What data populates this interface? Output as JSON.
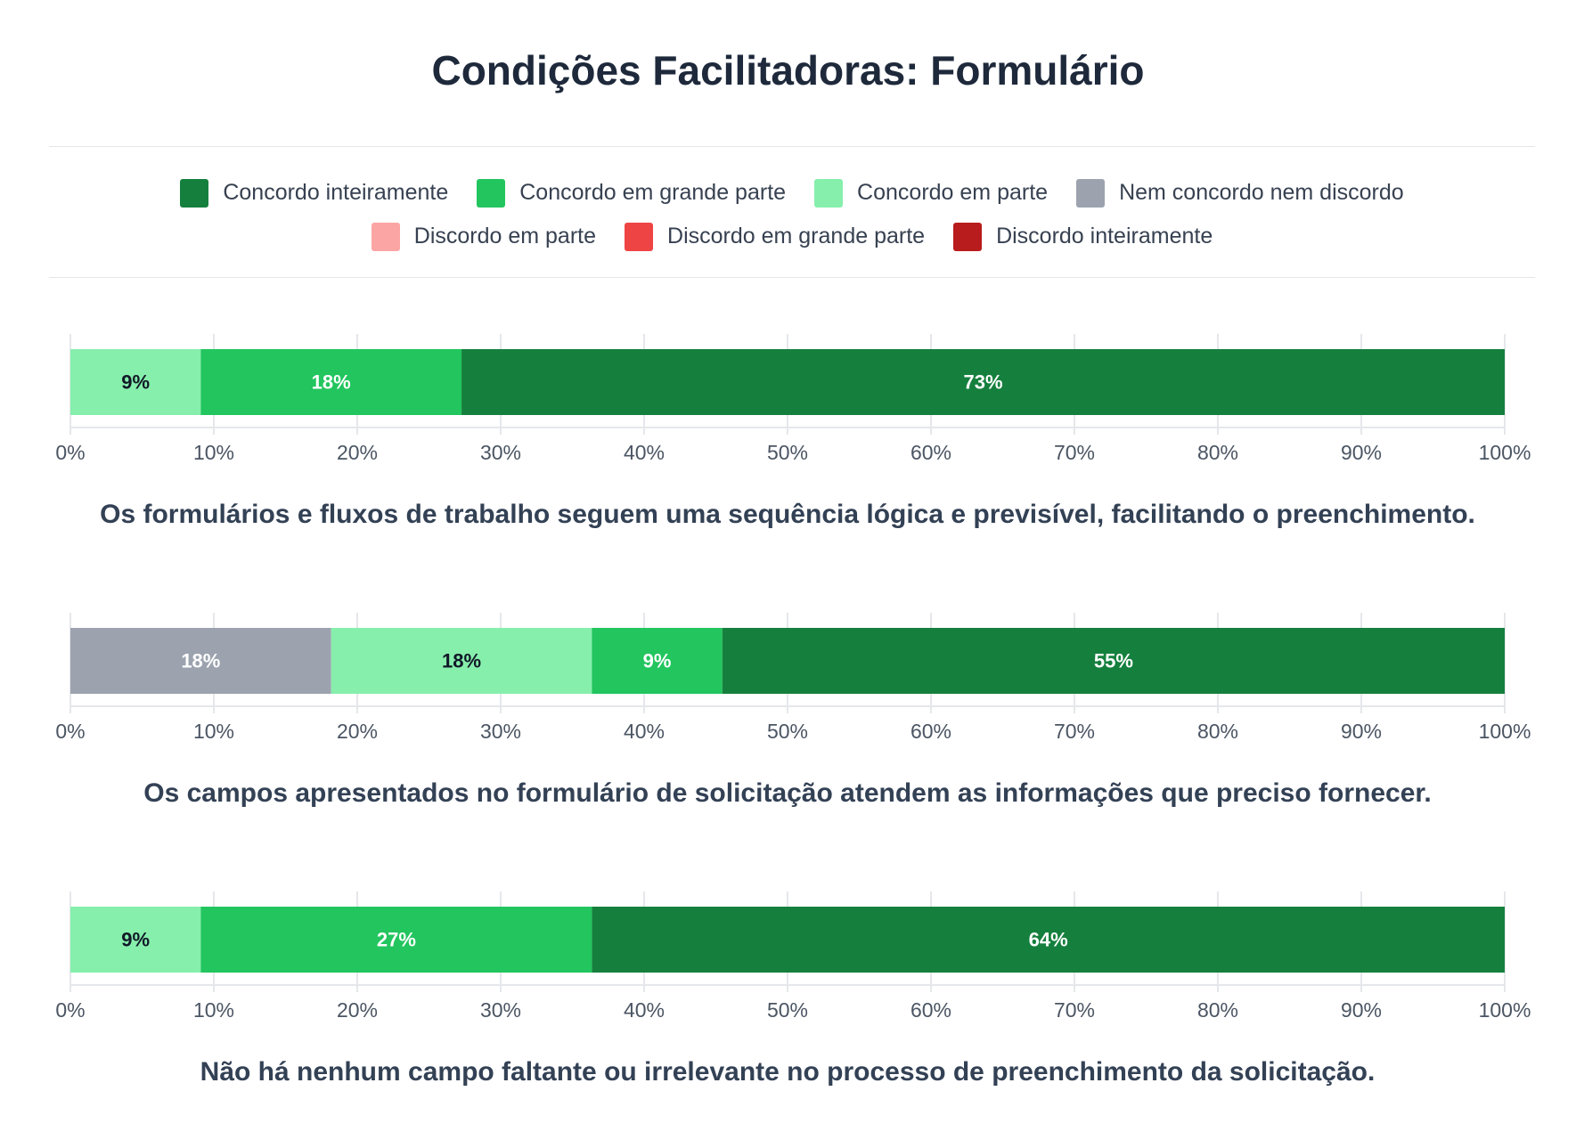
{
  "title": "Condições Facilitadoras: Formulário",
  "legend": [
    {
      "label": "Concordo inteiramente",
      "color": "#15803d"
    },
    {
      "label": "Concordo em grande parte",
      "color": "#22c55e"
    },
    {
      "label": "Concordo em parte",
      "color": "#86efac"
    },
    {
      "label": "Nem concordo nem discordo",
      "color": "#9ca3af"
    },
    {
      "label": "Discordo em parte",
      "color": "#fca5a5"
    },
    {
      "label": "Discordo em grande parte",
      "color": "#ef4444"
    },
    {
      "label": "Discordo inteiramente",
      "color": "#b91c1c"
    }
  ],
  "chart_data": [
    {
      "type": "bar",
      "orientation": "horizontal-stacked",
      "xlabel": "Os formulários e fluxos de trabalho seguem uma sequência lógica e previsível, facilitando o preenchimento.",
      "xlim": [
        0,
        100
      ],
      "xticks": [
        "0%",
        "10%",
        "20%",
        "30%",
        "40%",
        "50%",
        "60%",
        "70%",
        "80%",
        "90%",
        "100%"
      ],
      "segments": [
        {
          "category": "Concordo em parte",
          "value": 9.09,
          "label": "9%",
          "color": "#86efac",
          "text_color": "#111827"
        },
        {
          "category": "Concordo em grande parte",
          "value": 18.18,
          "label": "18%",
          "color": "#22c55e",
          "text_color": "#ffffff"
        },
        {
          "category": "Concordo inteiramente",
          "value": 72.73,
          "label": "73%",
          "color": "#15803d",
          "text_color": "#ffffff"
        }
      ]
    },
    {
      "type": "bar",
      "orientation": "horizontal-stacked",
      "xlabel": "Os campos apresentados no formulário de solicitação atendem as informações que preciso fornecer.",
      "xlim": [
        0,
        100
      ],
      "xticks": [
        "0%",
        "10%",
        "20%",
        "30%",
        "40%",
        "50%",
        "60%",
        "70%",
        "80%",
        "90%",
        "100%"
      ],
      "segments": [
        {
          "category": "Nem concordo nem discordo",
          "value": 18.18,
          "label": "18%",
          "color": "#9ca3af",
          "text_color": "#ffffff"
        },
        {
          "category": "Concordo em parte",
          "value": 18.18,
          "label": "18%",
          "color": "#86efac",
          "text_color": "#111827"
        },
        {
          "category": "Concordo em grande parte",
          "value": 9.09,
          "label": "9%",
          "color": "#22c55e",
          "text_color": "#ffffff"
        },
        {
          "category": "Concordo inteiramente",
          "value": 54.55,
          "label": "55%",
          "color": "#15803d",
          "text_color": "#ffffff"
        }
      ]
    },
    {
      "type": "bar",
      "orientation": "horizontal-stacked",
      "xlabel": "Não há nenhum campo faltante ou irrelevante no processo de preenchimento da solicitação.",
      "xlim": [
        0,
        100
      ],
      "xticks": [
        "0%",
        "10%",
        "20%",
        "30%",
        "40%",
        "50%",
        "60%",
        "70%",
        "80%",
        "90%",
        "100%"
      ],
      "segments": [
        {
          "category": "Concordo em parte",
          "value": 9.09,
          "label": "9%",
          "color": "#86efac",
          "text_color": "#111827"
        },
        {
          "category": "Concordo em grande parte",
          "value": 27.27,
          "label": "27%",
          "color": "#22c55e",
          "text_color": "#ffffff"
        },
        {
          "category": "Concordo inteiramente",
          "value": 63.64,
          "label": "64%",
          "color": "#15803d",
          "text_color": "#ffffff"
        }
      ]
    }
  ]
}
